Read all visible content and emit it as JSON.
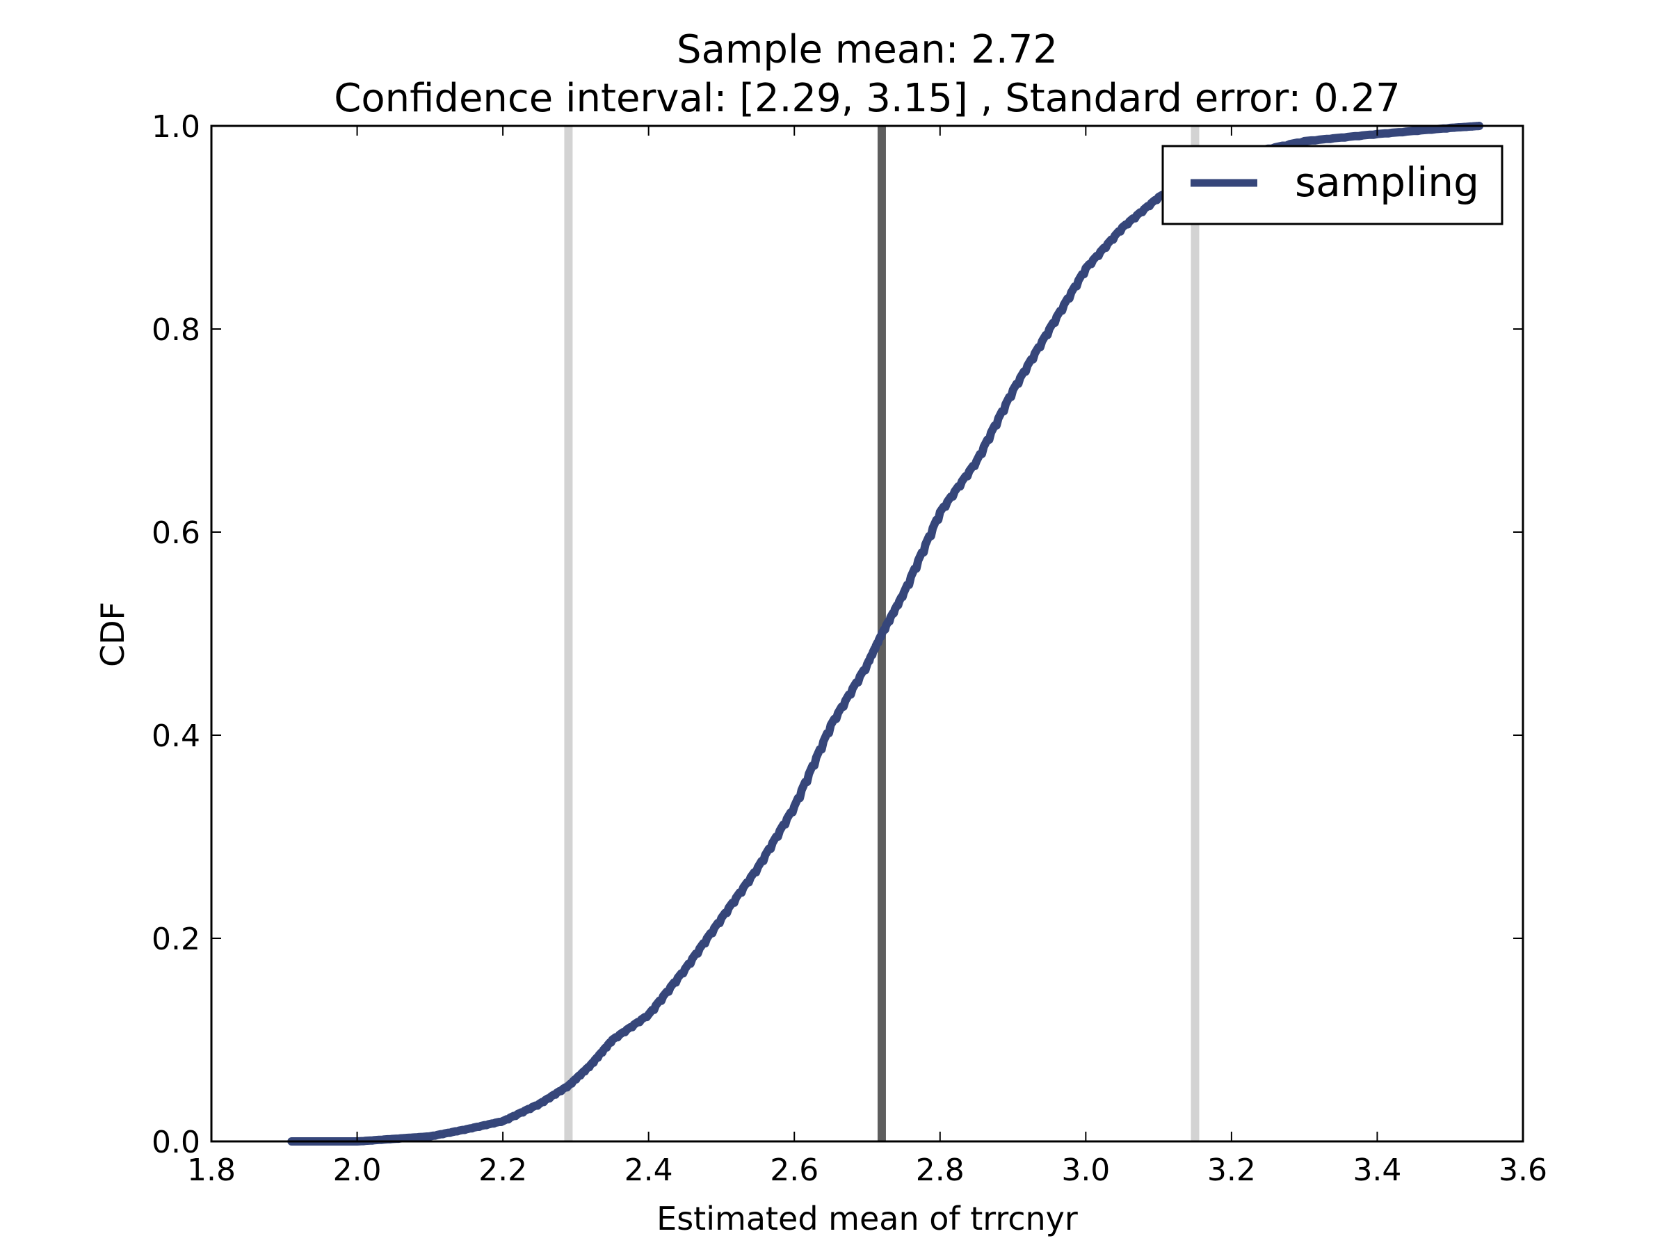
{
  "chart_data": {
    "type": "line",
    "title_line1": "Sample mean: 2.72",
    "title_line2": "Confidence interval: [2.29, 3.15] , Standard error: 0.27",
    "xlabel": "Estimated mean of trrcnyr",
    "ylabel": "CDF",
    "xlim": [
      1.8,
      3.6
    ],
    "ylim": [
      0.0,
      1.0
    ],
    "xticks": [
      "1.8",
      "2.0",
      "2.2",
      "2.4",
      "2.6",
      "2.8",
      "3.0",
      "3.2",
      "3.4",
      "3.6"
    ],
    "yticks": [
      "0.0",
      "0.2",
      "0.4",
      "0.6",
      "0.8",
      "1.0"
    ],
    "grid": false,
    "legend_position": "top-right",
    "series": [
      {
        "name": "sampling",
        "color": "#36467a",
        "x": [
          1.91,
          2.0,
          2.06,
          2.1,
          2.15,
          2.2,
          2.25,
          2.29,
          2.32,
          2.35,
          2.4,
          2.45,
          2.5,
          2.55,
          2.6,
          2.65,
          2.7,
          2.72,
          2.75,
          2.8,
          2.85,
          2.9,
          2.95,
          3.0,
          3.05,
          3.1,
          3.15,
          3.2,
          3.3,
          3.4,
          3.5,
          3.54
        ],
        "y": [
          0.0,
          0.0,
          0.003,
          0.005,
          0.012,
          0.02,
          0.037,
          0.055,
          0.075,
          0.1,
          0.125,
          0.17,
          0.22,
          0.27,
          0.33,
          0.41,
          0.47,
          0.5,
          0.54,
          0.62,
          0.67,
          0.74,
          0.8,
          0.86,
          0.9,
          0.93,
          0.95,
          0.97,
          0.985,
          0.992,
          0.998,
          1.0
        ]
      }
    ],
    "vlines": [
      {
        "name": "ci-lower",
        "x": 2.29,
        "color": "#d3d3d3"
      },
      {
        "name": "sample-mean",
        "x": 2.72,
        "color": "#5e5e5e"
      },
      {
        "name": "ci-upper",
        "x": 3.15,
        "color": "#d3d3d3"
      }
    ]
  }
}
